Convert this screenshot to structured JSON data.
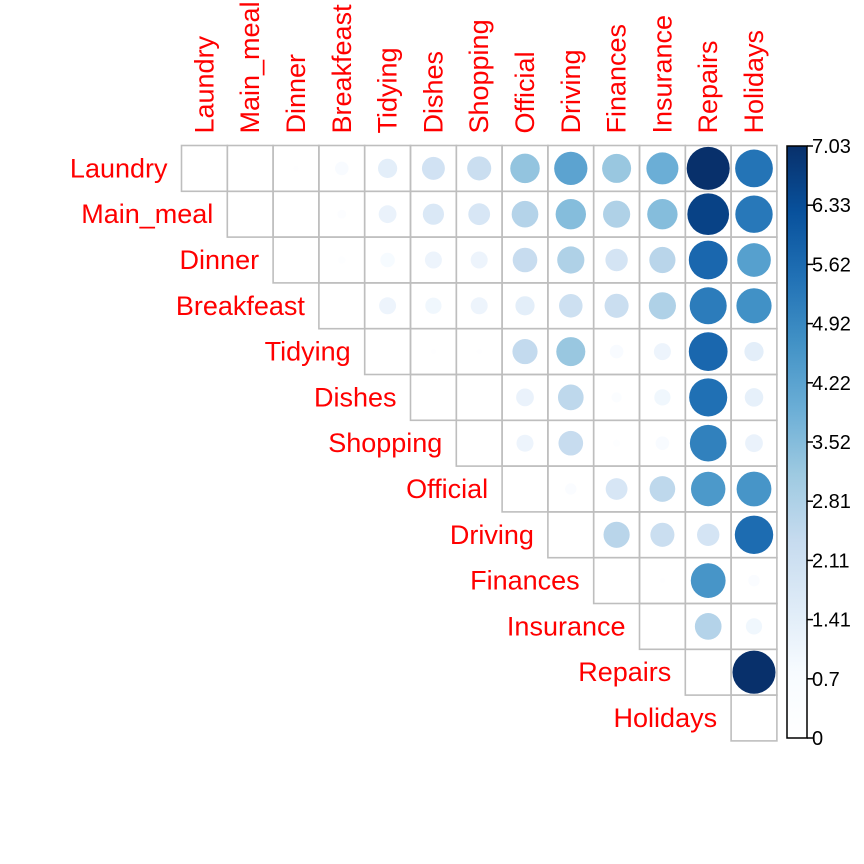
{
  "chart_data": {
    "type": "heatmap",
    "variant": "upper-triangle-circles",
    "rows": [
      "Laundry",
      "Main_meal",
      "Dinner",
      "Breakfeast",
      "Tidying",
      "Dishes",
      "Shopping",
      "Official",
      "Driving",
      "Finances",
      "Insurance",
      "Repairs",
      "Holidays"
    ],
    "columns": [
      "Laundry",
      "Main_meal",
      "Dinner",
      "Breakfeast",
      "Tidying",
      "Dishes",
      "Shopping",
      "Official",
      "Driving",
      "Finances",
      "Insurance",
      "Repairs",
      "Holidays"
    ],
    "values": [
      [
        0,
        0,
        0.1,
        0.7,
        1.4,
        2.0,
        2.2,
        3.3,
        4.2,
        3.2,
        3.9,
        7.03,
        5.4
      ],
      [
        null,
        0,
        0,
        0.3,
        1.2,
        1.7,
        1.8,
        2.7,
        3.5,
        2.8,
        3.5,
        6.6,
        5.3
      ],
      [
        null,
        null,
        0,
        0.2,
        0.8,
        1.1,
        1.1,
        2.3,
        2.8,
        1.9,
        2.6,
        5.7,
        4.3
      ],
      [
        null,
        null,
        null,
        0,
        1.1,
        1.0,
        1.1,
        1.4,
        2.1,
        2.2,
        2.8,
        5.2,
        4.7
      ],
      [
        null,
        null,
        null,
        null,
        0,
        0.1,
        0.1,
        2.4,
        3.2,
        0.7,
        1.1,
        5.7,
        1.4
      ],
      [
        null,
        null,
        null,
        null,
        null,
        0,
        0,
        1.2,
        2.5,
        0.4,
        1.0,
        5.5,
        1.3
      ],
      [
        null,
        null,
        null,
        null,
        null,
        null,
        0,
        1.1,
        2.3,
        0.2,
        0.7,
        5.1,
        1.2
      ],
      [
        null,
        null,
        null,
        null,
        null,
        null,
        null,
        0,
        0.5,
        1.8,
        2.5,
        4.5,
        4.6
      ],
      [
        null,
        null,
        null,
        null,
        null,
        null,
        null,
        null,
        0,
        2.6,
        2.2,
        1.9,
        5.6
      ],
      [
        null,
        null,
        null,
        null,
        null,
        null,
        null,
        null,
        null,
        0,
        0.1,
        4.6,
        0.5
      ],
      [
        null,
        null,
        null,
        null,
        null,
        null,
        null,
        null,
        null,
        null,
        0,
        2.7,
        1.0
      ],
      [
        null,
        null,
        null,
        null,
        null,
        null,
        null,
        null,
        null,
        null,
        null,
        0,
        7.03
      ],
      [
        null,
        null,
        null,
        null,
        null,
        null,
        null,
        null,
        null,
        null,
        null,
        null,
        0
      ]
    ],
    "color_scale": {
      "min": 0,
      "max": 7.03,
      "ticks": [
        "0",
        "0.7",
        "1.41",
        "2.11",
        "2.81",
        "3.52",
        "4.22",
        "4.92",
        "5.62",
        "6.33",
        "7.03"
      ],
      "colors": [
        "#ffffff",
        "#f7fbff",
        "#deebf7",
        "#c6dbef",
        "#9ecae1",
        "#6baed6",
        "#4292c6",
        "#2171b5",
        "#08519c",
        "#08306b"
      ]
    },
    "label_color": "#ff0000",
    "grid_color": "#bebebe",
    "legend_position": "right"
  }
}
